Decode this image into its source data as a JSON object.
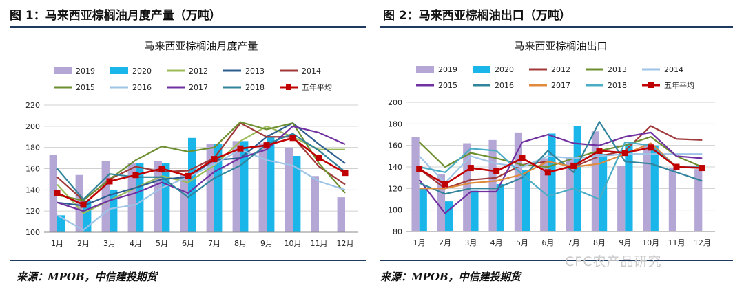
{
  "figures": [
    {
      "heading": "图 1：马来西亚棕榈油月度产量（万吨）",
      "source": "来源：MPOB，中信建投期货"
    },
    {
      "heading": "图 2：马来西亚棕榈油出口（万吨）",
      "source": "来源：MPOB，中信建投期货"
    }
  ],
  "watermark": "CFC农产品研究",
  "colors": {
    "rule": "#1f3a5f"
  },
  "chart_data": [
    {
      "type": "bar",
      "title": "马来西亚棕榈油月度产量",
      "categories": [
        "1月",
        "2月",
        "3月",
        "4月",
        "5月",
        "6月",
        "7月",
        "8月",
        "9月",
        "10月",
        "11月",
        "12月"
      ],
      "ylim": [
        100,
        220
      ],
      "yticks": [
        100,
        120,
        140,
        160,
        180,
        200,
        220
      ],
      "grid": true,
      "legend": "top",
      "bar_series": [
        {
          "name": "2019",
          "color": "#b4a7d6",
          "values": [
            173,
            154,
            167,
            165,
            167,
            155,
            183,
            186,
            184,
            180,
            153,
            133
          ]
        },
        {
          "name": "2020",
          "color": "#1ab6ea",
          "values": [
            116,
            130,
            140,
            165,
            165,
            189,
            183,
            186,
            190,
            172,
            null,
            null
          ]
        }
      ],
      "line_series": [
        {
          "name": "2012",
          "color": "#9bbb59",
          "values": [
            145,
            118,
            130,
            142,
            153,
            147,
            163,
            186,
            200,
            190,
            178,
            178
          ]
        },
        {
          "name": "2013",
          "color": "#2e5e8f",
          "values": [
            128,
            125,
            135,
            142,
            150,
            152,
            168,
            170,
            190,
            203,
            183,
            165
          ]
        },
        {
          "name": "2014",
          "color": "#a03a3a",
          "values": [
            152,
            130,
            150,
            162,
            157,
            158,
            170,
            203,
            190,
            190,
            162,
            145
          ]
        },
        {
          "name": "2015",
          "color": "#6d8f2f",
          "values": [
            135,
            130,
            150,
            168,
            181,
            176,
            180,
            204,
            197,
            203,
            165,
            137
          ]
        },
        {
          "name": "2016",
          "color": "#9dc3e6",
          "values": [
            116,
            102,
            122,
            126,
            142,
            152,
            164,
            178,
            168,
            163,
            148,
            140
          ]
        },
        {
          "name": "2017",
          "color": "#7030a0",
          "values": [
            128,
            120,
            130,
            137,
            147,
            137,
            157,
            170,
            178,
            200,
            194,
            183
          ]
        },
        {
          "name": "2018",
          "color": "#31849b",
          "values": [
            160,
            131,
            155,
            152,
            152,
            133,
            151,
            163,
            183,
            193,
            177,
            157
          ]
        },
        {
          "name": "五年平均",
          "color": "#c00000",
          "marker": "square",
          "values": [
            137,
            126,
            148,
            154,
            160,
            153,
            169,
            179,
            182,
            189,
            170,
            156
          ]
        }
      ]
    },
    {
      "type": "bar",
      "title": "马来西亚棕榈油出口",
      "categories": [
        "1月",
        "2月",
        "3月",
        "4月",
        "5月",
        "6月",
        "7月",
        "8月",
        "9月",
        "10月",
        "11月",
        "12月"
      ],
      "ylim": [
        80,
        200
      ],
      "yticks": [
        80,
        100,
        120,
        140,
        160,
        180,
        200
      ],
      "grid": true,
      "legend": "top",
      "bar_series": [
        {
          "name": "2019",
          "color": "#b4a7d6",
          "values": [
            168,
            133,
            162,
            165,
            172,
            148,
            148,
            173,
            141,
            161,
            139,
            138
          ]
        },
        {
          "name": "2020",
          "color": "#1ab6ea",
          "values": [
            120,
            108,
            118,
            124,
            137,
            171,
            178,
            152,
            161,
            160,
            null,
            null
          ]
        }
      ],
      "line_series": [
        {
          "name": "2012",
          "color": "#a03a3a",
          "values": [
            138,
            120,
            128,
            130,
            142,
            145,
            140,
            150,
            155,
            178,
            166,
            165
          ]
        },
        {
          "name": "2013",
          "color": "#6d8f2f",
          "values": [
            163,
            140,
            153,
            148,
            142,
            140,
            148,
            155,
            160,
            168,
            150,
            140
          ]
        },
        {
          "name": "2014",
          "color": "#9dc3e6",
          "values": [
            150,
            125,
            150,
            143,
            140,
            150,
            148,
            150,
            152,
            152,
            152,
            152
          ]
        },
        {
          "name": "2015",
          "color": "#7030a0",
          "values": [
            128,
            97,
            117,
            117,
            163,
            170,
            162,
            160,
            168,
            172,
            150,
            148
          ]
        },
        {
          "name": "2016",
          "color": "#31849b",
          "values": [
            125,
            115,
            120,
            120,
            130,
            155,
            135,
            182,
            145,
            143,
            135,
            127
          ]
        },
        {
          "name": "2017",
          "color": "#e08a3c",
          "values": [
            120,
            120,
            125,
            127,
            133,
            145,
            140,
            143,
            152,
            162,
            140,
            140
          ]
        },
        {
          "name": "2018",
          "color": "#4bacc6",
          "values": [
            140,
            135,
            157,
            155,
            133,
            113,
            120,
            110,
            163,
            160,
            140,
            140
          ]
        },
        {
          "name": "五年平均",
          "color": "#c00000",
          "marker": "square",
          "values": [
            138,
            124,
            139,
            136,
            148,
            135,
            141,
            155,
            153,
            158,
            140,
            139
          ]
        }
      ]
    }
  ]
}
